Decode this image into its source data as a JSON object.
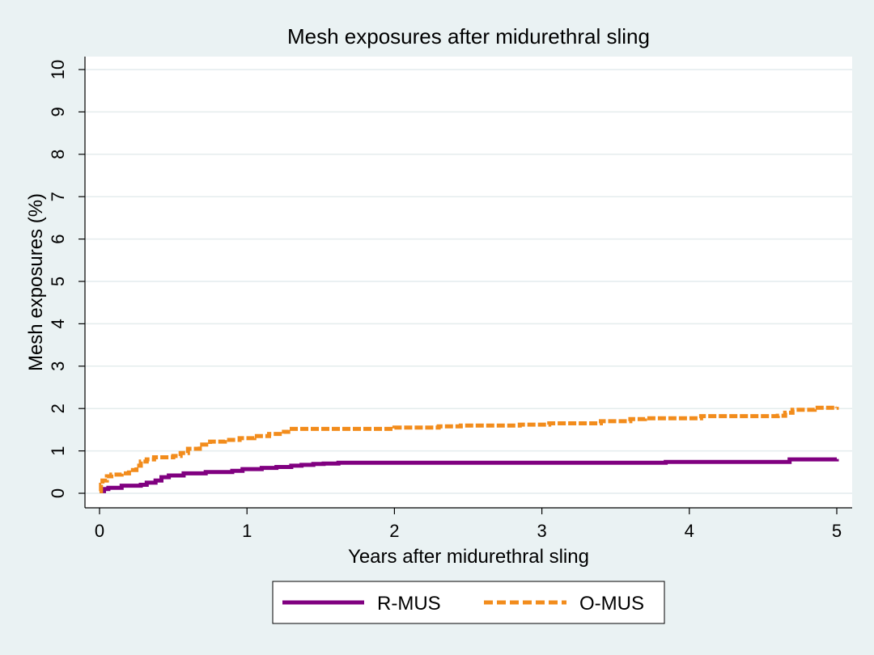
{
  "chart_data": {
    "type": "line",
    "title": "Mesh exposures after midurethral sling",
    "xlabel": "Years after midurethral sling",
    "ylabel": "Mesh exposures (%)",
    "xlim": [
      0,
      5
    ],
    "ylim": [
      0,
      10
    ],
    "xticks": [
      0,
      1,
      2,
      3,
      4,
      5
    ],
    "yticks": [
      0,
      1,
      2,
      3,
      4,
      5,
      6,
      7,
      8,
      9,
      10
    ],
    "grid": "horizontal",
    "legend_position": "bottom",
    "series": [
      {
        "name": "R-MUS",
        "color": "#800080",
        "style": "solid",
        "step": true,
        "points": [
          [
            0,
            0.05
          ],
          [
            0.03,
            0.1
          ],
          [
            0.06,
            0.13
          ],
          [
            0.15,
            0.18
          ],
          [
            0.28,
            0.2
          ],
          [
            0.32,
            0.25
          ],
          [
            0.38,
            0.3
          ],
          [
            0.42,
            0.38
          ],
          [
            0.47,
            0.42
          ],
          [
            0.57,
            0.47
          ],
          [
            0.72,
            0.5
          ],
          [
            0.9,
            0.53
          ],
          [
            0.97,
            0.57
          ],
          [
            1.1,
            0.6
          ],
          [
            1.2,
            0.62
          ],
          [
            1.3,
            0.65
          ],
          [
            1.37,
            0.67
          ],
          [
            1.45,
            0.69
          ],
          [
            1.52,
            0.7
          ],
          [
            1.62,
            0.72
          ],
          [
            3.84,
            0.74
          ],
          [
            4.68,
            0.8
          ],
          [
            5.0,
            0.81
          ]
        ]
      },
      {
        "name": "O-MUS",
        "color": "#f28c1c",
        "style": "dashed",
        "step": true,
        "points": [
          [
            0,
            0.05
          ],
          [
            0.01,
            0.2
          ],
          [
            0.02,
            0.3
          ],
          [
            0.05,
            0.4
          ],
          [
            0.08,
            0.44
          ],
          [
            0.15,
            0.47
          ],
          [
            0.2,
            0.55
          ],
          [
            0.25,
            0.65
          ],
          [
            0.28,
            0.75
          ],
          [
            0.32,
            0.8
          ],
          [
            0.37,
            0.85
          ],
          [
            0.5,
            0.88
          ],
          [
            0.55,
            0.95
          ],
          [
            0.6,
            1.05
          ],
          [
            0.68,
            1.15
          ],
          [
            0.75,
            1.22
          ],
          [
            0.85,
            1.26
          ],
          [
            0.95,
            1.3
          ],
          [
            1.05,
            1.35
          ],
          [
            1.15,
            1.4
          ],
          [
            1.25,
            1.45
          ],
          [
            1.28,
            1.52
          ],
          [
            2.0,
            1.55
          ],
          [
            2.3,
            1.58
          ],
          [
            2.45,
            1.6
          ],
          [
            2.85,
            1.62
          ],
          [
            3.05,
            1.65
          ],
          [
            3.4,
            1.7
          ],
          [
            3.6,
            1.75
          ],
          [
            3.7,
            1.77
          ],
          [
            4.08,
            1.82
          ],
          [
            4.6,
            1.83
          ],
          [
            4.65,
            1.9
          ],
          [
            4.7,
            1.97
          ],
          [
            4.85,
            2.02
          ],
          [
            5.0,
            2.04
          ]
        ]
      }
    ]
  }
}
